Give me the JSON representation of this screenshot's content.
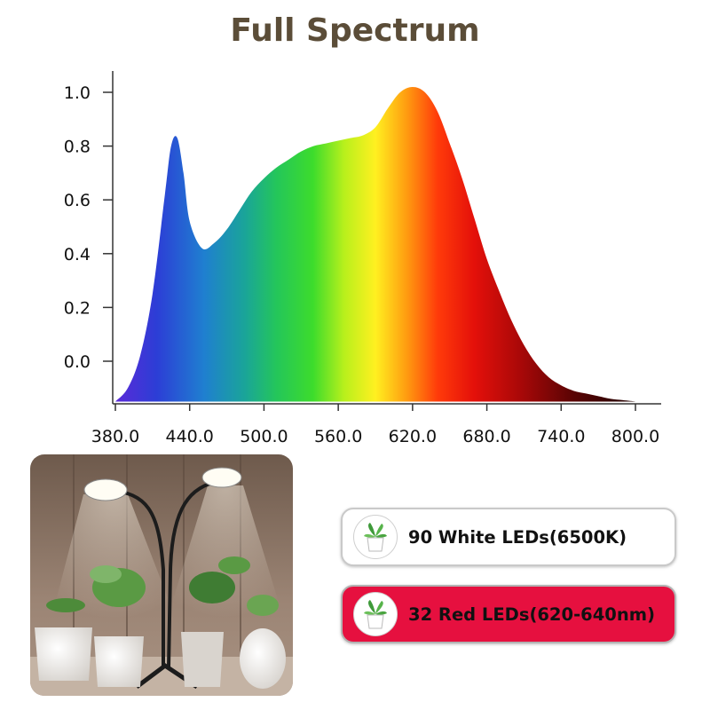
{
  "chart_data": {
    "type": "area",
    "title": "Full Spectrum",
    "xlabel": "",
    "ylabel": "",
    "xlim": [
      380,
      800
    ],
    "ylim": [
      -0.15,
      1.08
    ],
    "x_ticks": [
      "380.0",
      "440.0",
      "500.0",
      "560.0",
      "620.0",
      "680.0",
      "740.0",
      "800.0"
    ],
    "y_ticks": [
      "0.0",
      "0.2",
      "0.4",
      "0.6",
      "0.8",
      "1.0"
    ],
    "grid": false,
    "series": [
      {
        "x": [
          380,
          390,
          400,
          410,
          420,
          425,
          430,
          435,
          440,
          450,
          460,
          470,
          480,
          490,
          500,
          510,
          520,
          530,
          540,
          550,
          560,
          570,
          580,
          590,
          600,
          610,
          620,
          630,
          640,
          650,
          660,
          670,
          680,
          690,
          700,
          710,
          720,
          730,
          740,
          750,
          760,
          770,
          780,
          790,
          800
        ],
        "y": [
          -0.15,
          -0.1,
          0.02,
          0.25,
          0.62,
          0.8,
          0.83,
          0.7,
          0.52,
          0.42,
          0.44,
          0.49,
          0.56,
          0.63,
          0.68,
          0.72,
          0.75,
          0.78,
          0.8,
          0.81,
          0.82,
          0.83,
          0.84,
          0.87,
          0.94,
          1.0,
          1.02,
          1.0,
          0.93,
          0.81,
          0.68,
          0.53,
          0.38,
          0.26,
          0.15,
          0.06,
          -0.01,
          -0.06,
          -0.09,
          -0.11,
          -0.12,
          -0.13,
          -0.14,
          -0.145,
          -0.15
        ]
      }
    ]
  },
  "badges": [
    {
      "label": "90 White LEDs(6500K)",
      "background": "#ffffff"
    },
    {
      "label": "32 Red LEDs(620-640nm)",
      "background": "#e6103f"
    }
  ],
  "photo": {
    "icon": "grow-lamp-with-plants-photo"
  },
  "icons": {
    "badge": "potted-plant-icon"
  }
}
